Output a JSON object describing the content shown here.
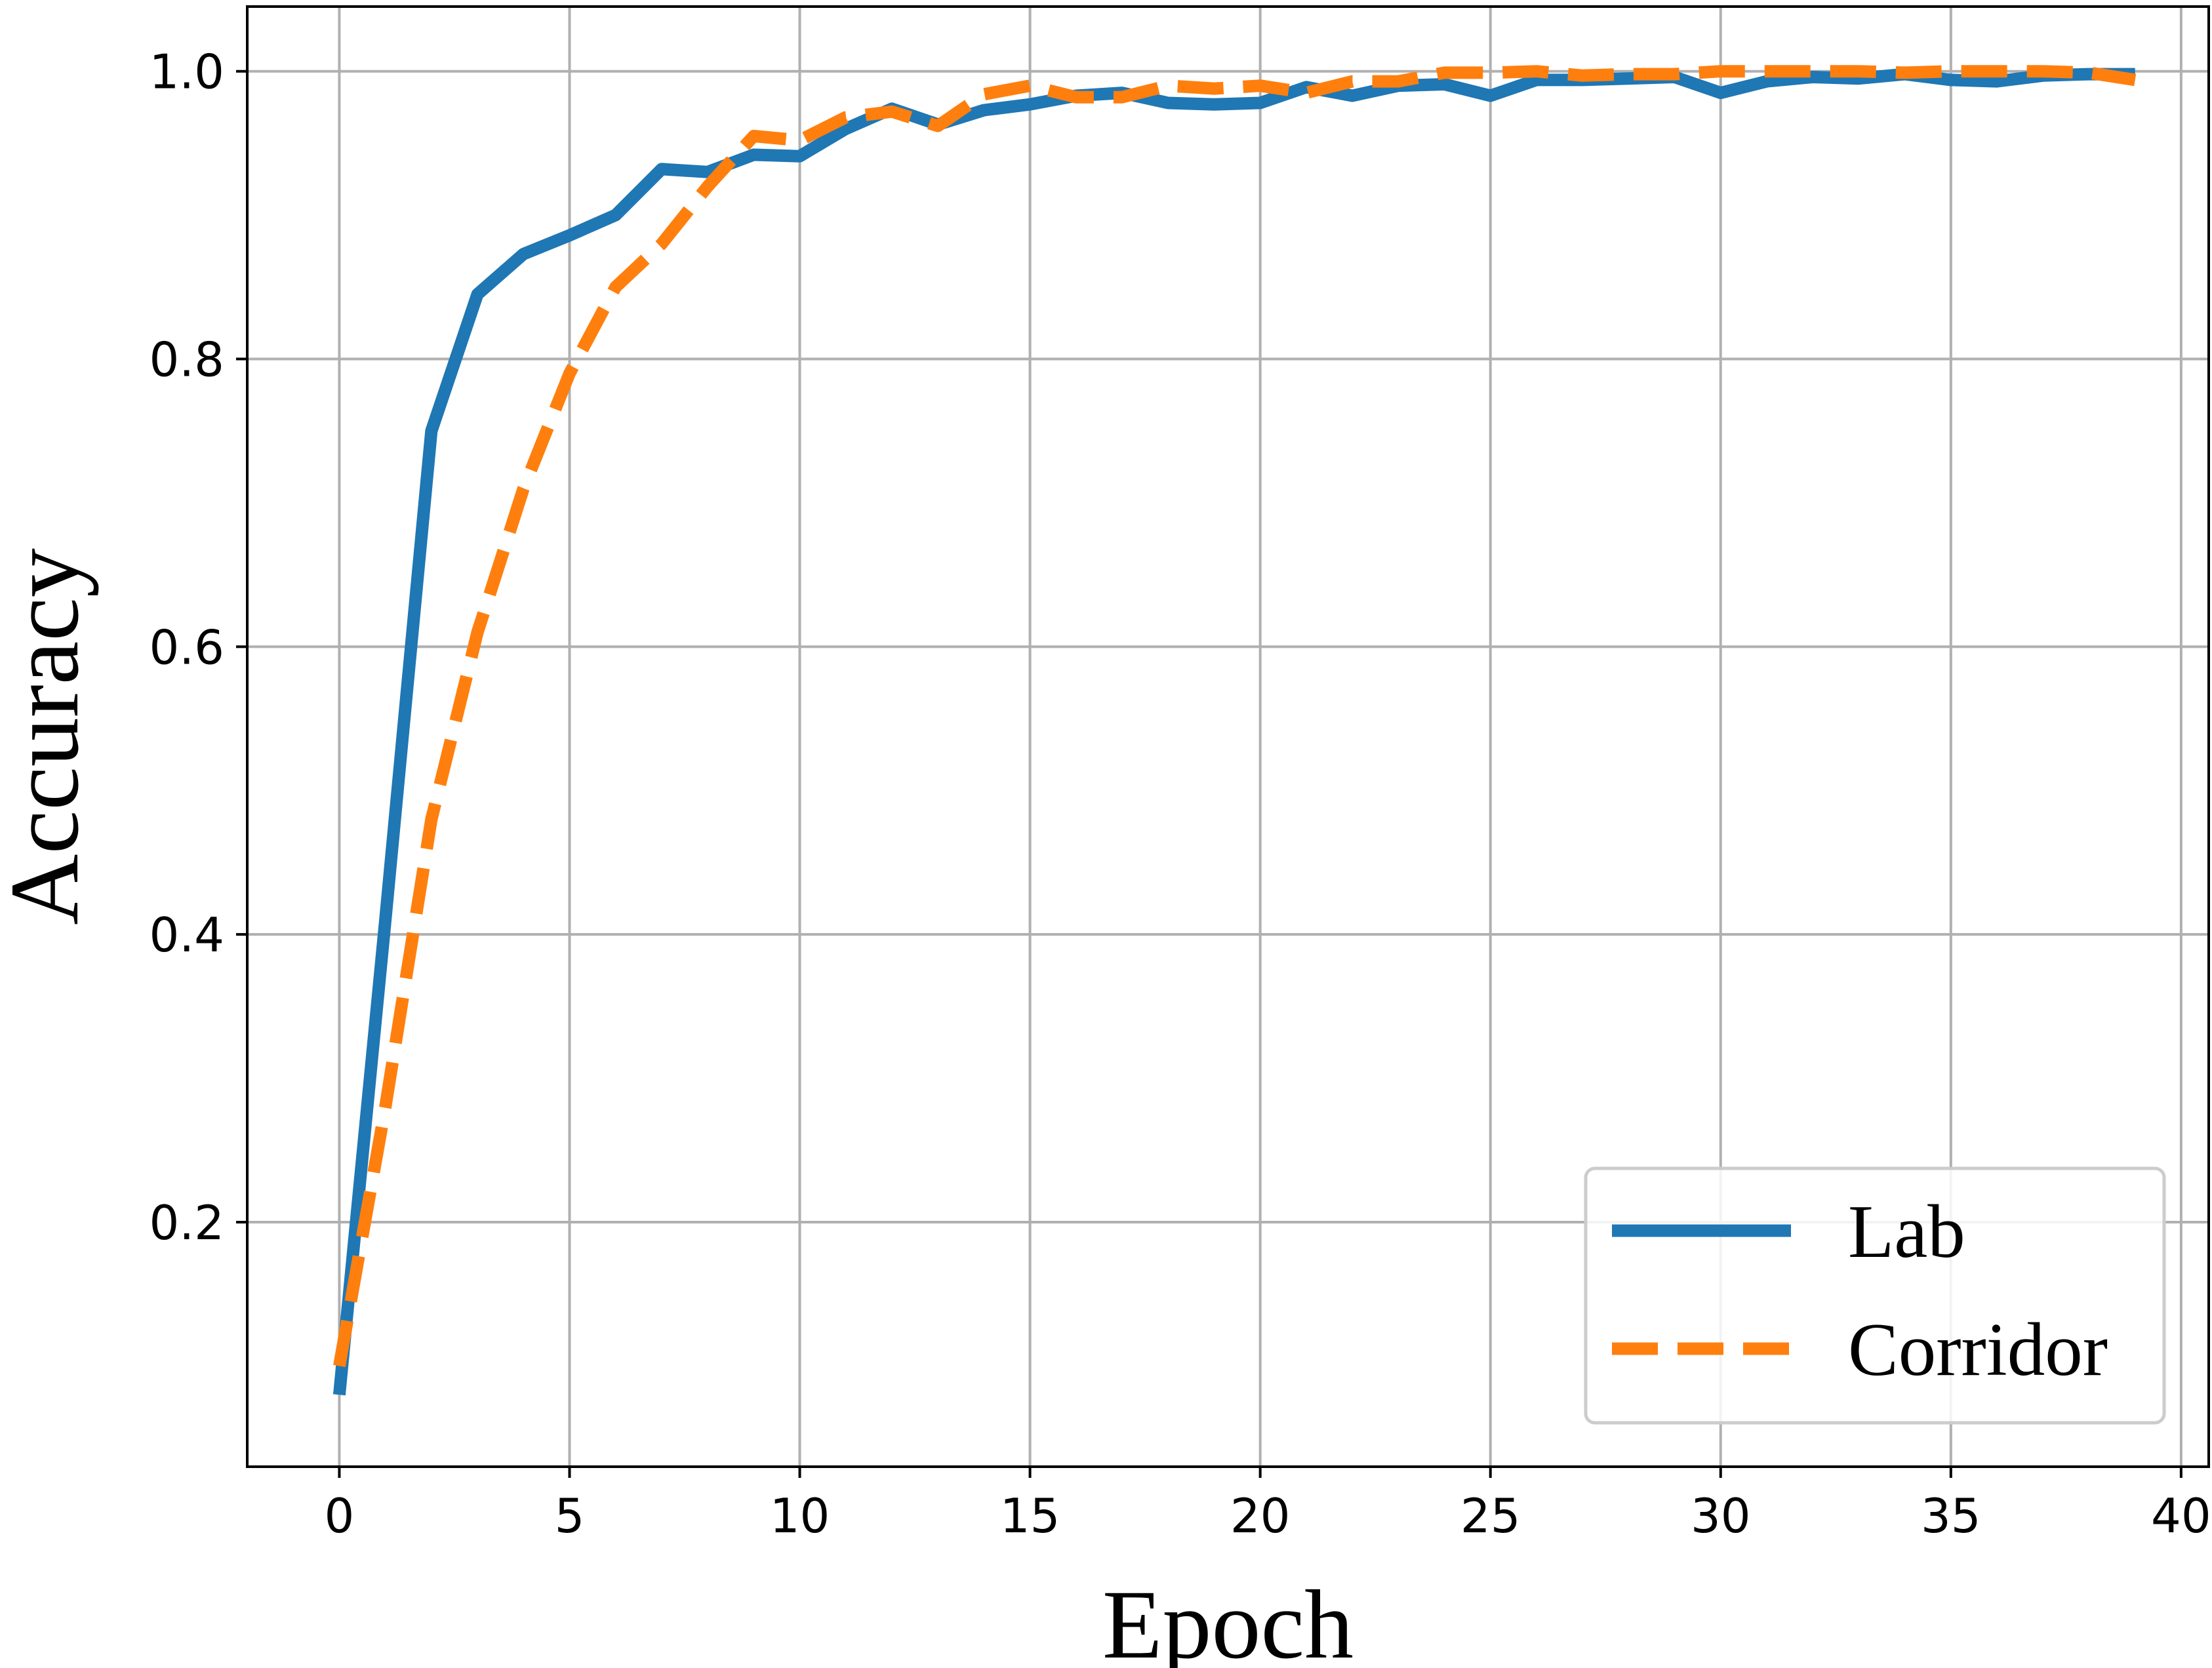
{
  "chart_data": {
    "type": "line",
    "xlabel": "Epoch",
    "ylabel": "Accuracy",
    "xlim": [
      -2,
      40.6
    ],
    "ylim": [
      0.03,
      1.045
    ],
    "xticks": [
      0,
      5,
      10,
      15,
      20,
      25,
      30,
      35,
      40
    ],
    "yticks": [
      0.2,
      0.4,
      0.6,
      0.8,
      1.0
    ],
    "grid": true,
    "legend_position": "lower-right",
    "x": [
      0,
      1,
      2,
      3,
      4,
      5,
      6,
      7,
      8,
      9,
      10,
      11,
      12,
      13,
      14,
      15,
      16,
      17,
      18,
      19,
      20,
      21,
      22,
      23,
      24,
      25,
      26,
      27,
      28,
      29,
      30,
      31,
      32,
      33,
      34,
      35,
      36,
      37,
      38,
      39
    ],
    "series": [
      {
        "name": "Lab",
        "color": "#1f77b4",
        "style": "solid",
        "values": [
          0.08,
          0.41,
          0.75,
          0.845,
          0.873,
          0.886,
          0.9,
          0.932,
          0.93,
          0.942,
          0.941,
          0.96,
          0.974,
          0.963,
          0.973,
          0.977,
          0.983,
          0.985,
          0.978,
          0.977,
          0.978,
          0.989,
          0.983,
          0.99,
          0.991,
          0.983,
          0.994,
          0.994,
          0.995,
          0.996,
          0.985,
          0.993,
          0.996,
          0.995,
          0.998,
          0.994,
          0.993,
          0.997,
          0.998,
          0.998
        ]
      },
      {
        "name": "Corridor",
        "color": "#ff7f0e",
        "style": "dashed",
        "values": [
          0.1,
          0.28,
          0.48,
          0.61,
          0.71,
          0.79,
          0.85,
          0.88,
          0.92,
          0.955,
          0.952,
          0.968,
          0.972,
          0.962,
          0.984,
          0.99,
          0.982,
          0.982,
          0.99,
          0.988,
          0.99,
          0.985,
          0.993,
          0.993,
          0.999,
          0.999,
          1.0,
          0.997,
          0.998,
          0.998,
          1.0,
          1.0,
          1.0,
          1.0,
          0.999,
          1.0,
          1.0,
          1.0,
          0.999,
          0.994
        ]
      }
    ]
  }
}
